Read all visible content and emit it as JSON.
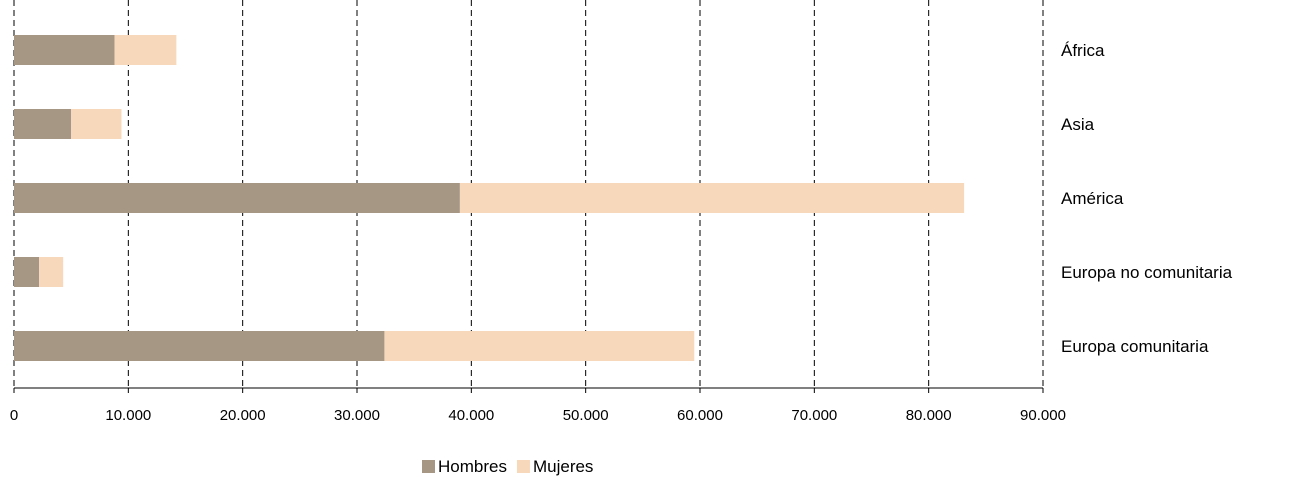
{
  "chart_data": {
    "type": "bar",
    "orientation": "horizontal",
    "stacked": true,
    "categories": [
      "África",
      "Asia",
      "América",
      "Europa no comunitaria",
      "Europa comunitaria"
    ],
    "series": [
      {
        "name": "Hombres",
        "color": "#a69785",
        "values": [
          8800,
          5000,
          39000,
          2200,
          32400
        ]
      },
      {
        "name": "Mujeres",
        "color": "#f8d8bb",
        "values": [
          5400,
          4400,
          44100,
          2100,
          27100
        ]
      }
    ],
    "x_ticks": [
      "0",
      "10.000",
      "20.000",
      "30.000",
      "40.000",
      "50.000",
      "60.000",
      "70.000",
      "80.000",
      "90.000"
    ],
    "xlim": [
      0,
      90000
    ],
    "grid": "vertical-dashed",
    "category_labels_position": "right",
    "legend_position": "bottom-center",
    "title": "",
    "xlabel": "",
    "ylabel": ""
  }
}
